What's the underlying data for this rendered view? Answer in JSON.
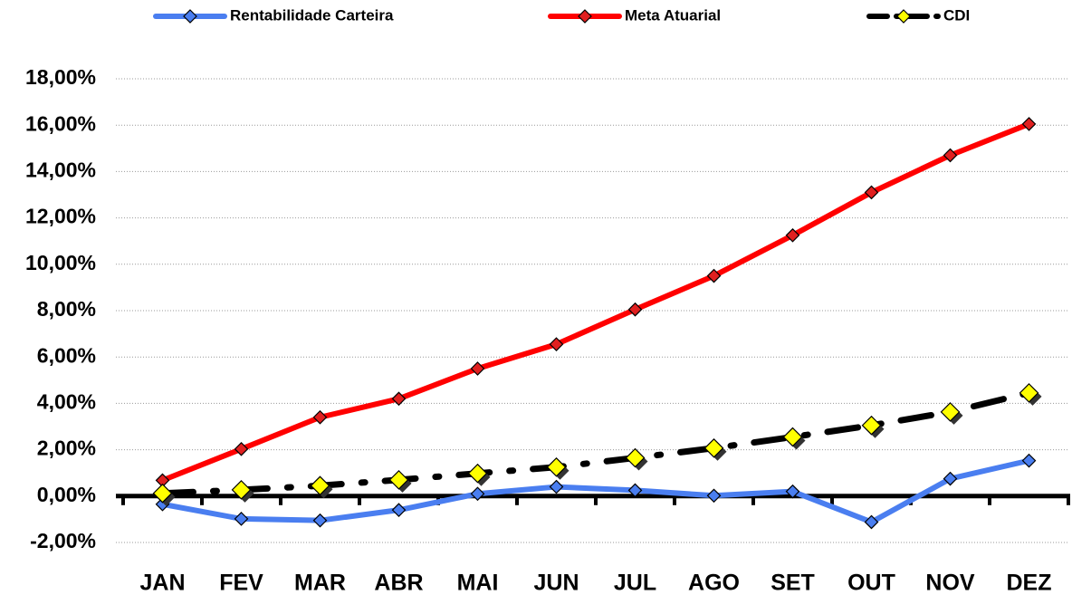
{
  "chart_data": {
    "type": "line",
    "categories": [
      "JAN",
      "FEV",
      "MAR",
      "ABR",
      "MAI",
      "JUN",
      "JUL",
      "AGO",
      "SET",
      "OUT",
      "NOV",
      "DEZ"
    ],
    "series": [
      {
        "name": "Rentabilidade Carteira",
        "color": "#4a7ef0",
        "marker_color": "#4a7ef0",
        "dash": "solid",
        "values": [
          -0.35,
          -0.98,
          -1.05,
          -0.6,
          0.1,
          0.4,
          0.25,
          0.02,
          0.2,
          -1.12,
          0.75,
          1.53
        ]
      },
      {
        "name": "Meta Atuarial",
        "color": "#ff0000",
        "marker_color": "#e02020",
        "dash": "solid",
        "values": [
          0.68,
          2.03,
          3.4,
          4.2,
          5.5,
          6.55,
          8.05,
          9.5,
          11.25,
          13.1,
          14.7,
          16.05
        ]
      },
      {
        "name": "CDI",
        "color": "#000000",
        "marker_color": "#ffff00",
        "dash": "dashdot",
        "values": [
          0.12,
          0.27,
          0.45,
          0.7,
          0.98,
          1.25,
          1.65,
          2.07,
          2.55,
          3.05,
          3.63,
          4.45
        ]
      }
    ],
    "ylim": [
      -2,
      18
    ],
    "yticks": [
      {
        "value": -2,
        "label": "-2,00%"
      },
      {
        "value": 0,
        "label": "0,00%"
      },
      {
        "value": 2,
        "label": "2,00%"
      },
      {
        "value": 4,
        "label": "4,00%"
      },
      {
        "value": 6,
        "label": "6,00%"
      },
      {
        "value": 8,
        "label": "8,00%"
      },
      {
        "value": 10,
        "label": "10,00%"
      },
      {
        "value": 12,
        "label": "12,00%"
      },
      {
        "value": 14,
        "label": "14,00%"
      },
      {
        "value": 16,
        "label": "16,00%"
      },
      {
        "value": 18,
        "label": "18,00%"
      }
    ],
    "grid": true,
    "legend": "top"
  }
}
